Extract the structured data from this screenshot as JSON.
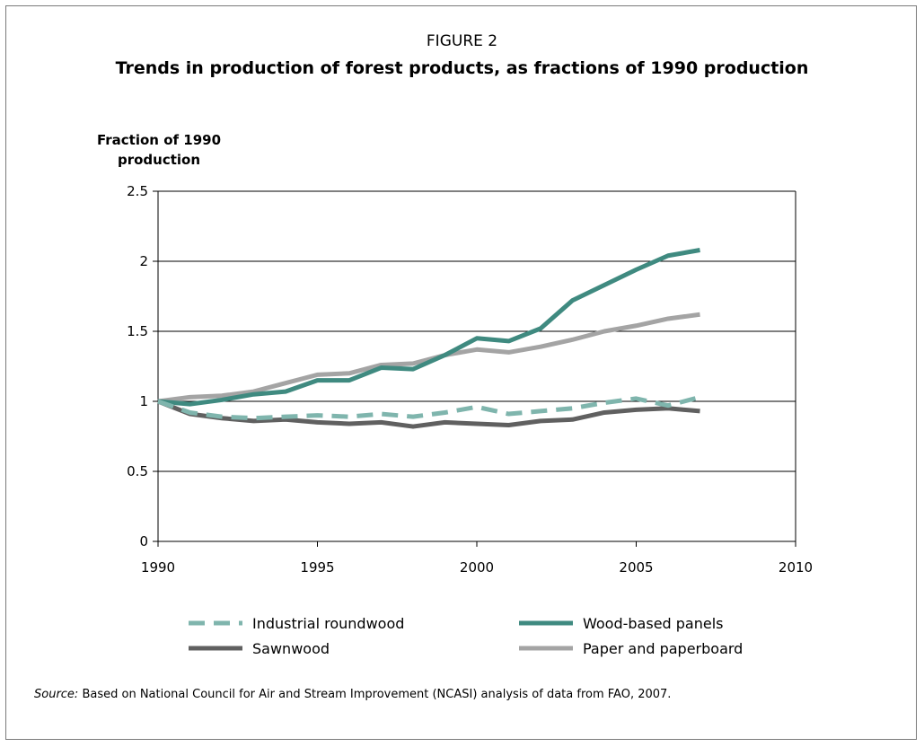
{
  "figure_label": "FIGURE 2",
  "source": {
    "prefix": "Source:",
    "text": " Based on National Council for Air and Stream Improvement (NCASI) analysis of data from FAO, 2007."
  },
  "chart_data": {
    "type": "line",
    "title": "Trends in production of forest products, as fractions of 1990 production",
    "ylabel_lines": [
      "Fraction of 1990",
      "production"
    ],
    "xlabel": "",
    "xlim": [
      1990,
      2010
    ],
    "ylim": [
      0,
      2.5
    ],
    "x_ticks": [
      1990,
      1995,
      2000,
      2005,
      2010
    ],
    "y_ticks": [
      0,
      0.5,
      1,
      1.5,
      2,
      2.5
    ],
    "y_tick_labels": [
      "0",
      "0.5",
      "1",
      "1.5",
      "2",
      "2.5"
    ],
    "grid": "horizontal",
    "legend_position": "bottom",
    "x": [
      1990,
      1991,
      1992,
      1993,
      1994,
      1995,
      1996,
      1997,
      1998,
      1999,
      2000,
      2001,
      2002,
      2003,
      2004,
      2005,
      2006,
      2007
    ],
    "series": [
      {
        "name": "Industrial roundwood",
        "color": "#7fb5ad",
        "style": "dashed",
        "values": [
          1.0,
          0.92,
          0.89,
          0.88,
          0.89,
          0.9,
          0.89,
          0.91,
          0.89,
          0.92,
          0.96,
          0.91,
          0.93,
          0.95,
          0.99,
          1.02,
          0.97,
          1.03
        ]
      },
      {
        "name": "Wood-based panels",
        "color": "#3f8a80",
        "style": "solid",
        "values": [
          1.0,
          0.98,
          1.01,
          1.05,
          1.07,
          1.15,
          1.15,
          1.24,
          1.23,
          1.33,
          1.45,
          1.43,
          1.52,
          1.72,
          1.83,
          1.94,
          2.04,
          2.08
        ]
      },
      {
        "name": "Sawnwood",
        "color": "#606060",
        "style": "solid",
        "values": [
          1.0,
          0.91,
          0.88,
          0.86,
          0.87,
          0.85,
          0.84,
          0.85,
          0.82,
          0.85,
          0.84,
          0.83,
          0.86,
          0.87,
          0.92,
          0.94,
          0.95,
          0.93
        ]
      },
      {
        "name": "Paper and paperboard",
        "color": "#a4a4a4",
        "style": "solid",
        "values": [
          1.0,
          1.03,
          1.04,
          1.07,
          1.13,
          1.19,
          1.2,
          1.26,
          1.27,
          1.33,
          1.37,
          1.35,
          1.39,
          1.44,
          1.5,
          1.54,
          1.59,
          1.62
        ]
      }
    ]
  }
}
